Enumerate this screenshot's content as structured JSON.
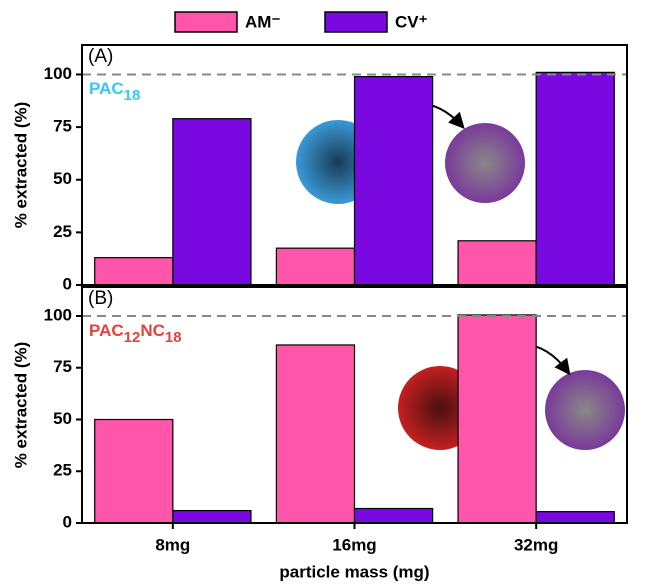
{
  "chart_data": [
    {
      "type": "bar",
      "panel_label": "(A)",
      "annotation": [
        "PAC",
        "18"
      ],
      "annotation_color": "#33c8ff",
      "ylabel": "% extracted (%)",
      "series": [
        {
          "name": "AM⁻",
          "color": "#ff55aa",
          "values": [
            13,
            17.5,
            21
          ]
        },
        {
          "name": "CV⁺",
          "color": "#7a08e0",
          "values": [
            79,
            99,
            101
          ]
        }
      ],
      "ylim": [
        0,
        114
      ],
      "yticks": [
        0,
        25,
        50,
        75,
        100
      ],
      "reference_line": 100
    },
    {
      "type": "bar",
      "panel_label": "(B)",
      "annotation": [
        "PAC",
        "12",
        "NC",
        "18"
      ],
      "annotation_color": "#e8403a",
      "ylabel": "% extracted (%)",
      "xlabel": "particle mass (mg)",
      "categories": [
        "8mg",
        "16mg",
        "32mg"
      ],
      "series": [
        {
          "color": "#ff55aa",
          "values": [
            50,
            86,
            100.5
          ]
        },
        {
          "color": "#7a08e0",
          "values": [
            6,
            7,
            5.5
          ]
        }
      ],
      "ylim": [
        0,
        114
      ],
      "yticks": [
        0,
        25,
        50,
        75,
        100
      ],
      "reference_line": 100
    }
  ]
}
